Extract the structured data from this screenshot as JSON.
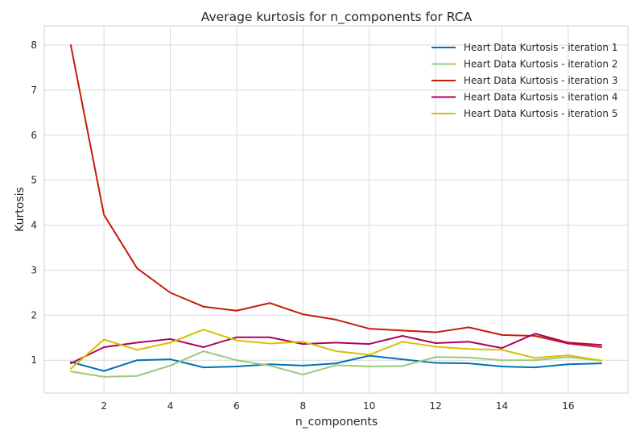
{
  "chart_data": {
    "type": "line",
    "title": "Average kurtosis for n_components for RCA",
    "xlabel": "n_components",
    "ylabel": "Kurtosis",
    "xlim": [
      0.2,
      17.8
    ],
    "ylim": [
      0.27,
      8.43
    ],
    "xticks": [
      2,
      4,
      6,
      8,
      10,
      12,
      14,
      16
    ],
    "yticks": [
      1,
      2,
      3,
      4,
      5,
      6,
      7,
      8
    ],
    "grid": true,
    "legend_position": "top-right",
    "x": [
      1,
      2,
      3,
      4,
      5,
      6,
      7,
      8,
      9,
      10,
      11,
      12,
      13,
      14,
      15,
      16,
      17
    ],
    "series": [
      {
        "name": "Heart Data Kurtosis - iteration 1",
        "color": "#0072b2",
        "values": [
          0.96,
          0.76,
          1.0,
          1.02,
          0.84,
          0.86,
          0.91,
          0.88,
          0.93,
          1.1,
          1.02,
          0.94,
          0.93,
          0.86,
          0.84,
          0.91,
          0.93
        ]
      },
      {
        "name": "Heart Data Kurtosis - iteration 2",
        "color": "#9ac97a",
        "values": [
          0.75,
          0.63,
          0.65,
          0.88,
          1.2,
          1.0,
          0.88,
          0.68,
          0.89,
          0.86,
          0.87,
          1.07,
          1.06,
          1.0,
          1.0,
          1.07,
          0.99
        ]
      },
      {
        "name": "Heart Data Kurtosis - iteration 3",
        "color": "#c41c08",
        "values": [
          8.0,
          4.23,
          3.04,
          2.5,
          2.19,
          2.1,
          2.27,
          2.02,
          1.9,
          1.7,
          1.66,
          1.62,
          1.73,
          1.56,
          1.54,
          1.37,
          1.29
        ]
      },
      {
        "name": "Heart Data Kurtosis - iteration 4",
        "color": "#b0005f",
        "values": [
          0.93,
          1.29,
          1.39,
          1.47,
          1.29,
          1.51,
          1.51,
          1.36,
          1.39,
          1.36,
          1.54,
          1.38,
          1.41,
          1.27,
          1.59,
          1.39,
          1.34
        ]
      },
      {
        "name": "Heart Data Kurtosis - iteration 5",
        "color": "#d8c000",
        "values": [
          0.81,
          1.46,
          1.23,
          1.39,
          1.68,
          1.44,
          1.37,
          1.41,
          1.2,
          1.12,
          1.41,
          1.3,
          1.25,
          1.23,
          1.05,
          1.11,
          0.99
        ]
      }
    ]
  }
}
